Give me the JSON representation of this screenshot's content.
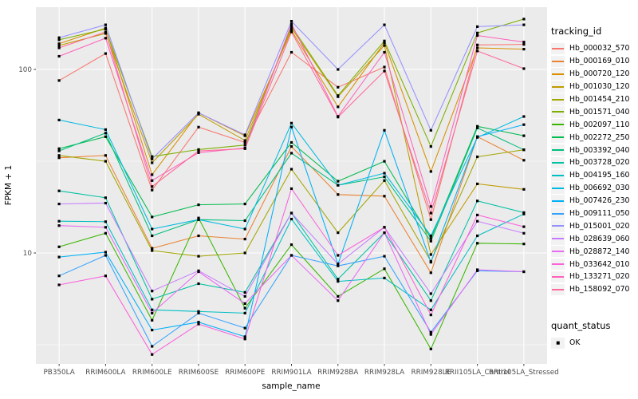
{
  "chart_data": {
    "type": "line",
    "title": "",
    "xlabel": "sample_name",
    "ylabel": "FPKM + 1",
    "x_categories": [
      "PB350LA",
      "RRIM600LA",
      "RRIM600LE",
      "RRIM600SE",
      "RRIM600PE",
      "RRIM901LA",
      "RRIM928BA",
      "RRIM928LA",
      "RRIM928LE",
      "RRII105LA_Control",
      "RRII105LA_Stressed"
    ],
    "y_scale": "log10",
    "y_ticks": [
      10,
      100
    ],
    "y_minor_ticks": [
      3.162,
      31.623
    ],
    "ylim": [
      2.5,
      218
    ],
    "grid": "on",
    "panel_bg": "#EBEBEB",
    "grid_color": "#FFFFFF",
    "tick_color": "#333333",
    "tick_label_color": "#4D4D4D",
    "point_color": "#000000",
    "point_shape": "square",
    "legend_position": "right",
    "legend_title": "tracking_id",
    "quant_legend": {
      "title": "quant_status",
      "items": [
        "OK"
      ]
    },
    "series": [
      {
        "name": "Hb_000032_570",
        "color": "#F8766D",
        "values": [
          87,
          122,
          22,
          48.5,
          40,
          124,
          80,
          103,
          15.2,
          136,
          137
        ]
      },
      {
        "name": "Hb_000169_010",
        "color": "#EA8331",
        "values": [
          33,
          34,
          10.6,
          12.4,
          11.9,
          38,
          20.8,
          20.4,
          7.8,
          43,
          32
        ]
      },
      {
        "name": "Hb_000720_120",
        "color": "#D89000",
        "values": [
          138,
          168,
          26.7,
          58,
          43.5,
          163,
          62.5,
          140,
          27.8,
          131,
          129
        ]
      },
      {
        "name": "Hb_001030_120",
        "color": "#C09B00",
        "values": [
          135,
          157,
          31,
          57,
          41,
          168,
          71,
          135,
          9.8,
          23.8,
          22.2
        ]
      },
      {
        "name": "Hb_001454_210",
        "color": "#A3A500",
        "values": [
          34,
          31.6,
          10.3,
          9.6,
          10,
          28.6,
          12.9,
          24.8,
          9,
          33.4,
          36.5
        ]
      },
      {
        "name": "Hb_001571_040",
        "color": "#7CAE00",
        "values": [
          145,
          166,
          33.5,
          36.6,
          38.7,
          172,
          72,
          143,
          38,
          158,
          188
        ]
      },
      {
        "name": "Hb_002097_110",
        "color": "#39B600",
        "values": [
          10.8,
          12.8,
          4.3,
          15.5,
          5,
          11.1,
          5.8,
          8.2,
          3,
          11.3,
          11.2
        ]
      },
      {
        "name": "Hb_002272_250",
        "color": "#00BB4E",
        "values": [
          37,
          43,
          15.7,
          18.3,
          18.5,
          40,
          24.6,
          31.6,
          12,
          49,
          43.5
        ]
      },
      {
        "name": "Hb_003392_040",
        "color": "#00BF7D",
        "values": [
          36,
          45,
          12.4,
          15.2,
          15,
          35,
          23.4,
          26,
          11.6,
          48,
          36.5
        ]
      },
      {
        "name": "Hb_003728_020",
        "color": "#00C1A3",
        "values": [
          21.8,
          20,
          5.6,
          6.8,
          6.1,
          16.5,
          7.2,
          12.9,
          5.5,
          19.2,
          16.6
        ]
      },
      {
        "name": "Hb_004195_160",
        "color": "#00BFC4",
        "values": [
          14.9,
          14.8,
          4.9,
          4.8,
          4.7,
          15.3,
          7,
          7.3,
          4.9,
          12.4,
          16.3
        ]
      },
      {
        "name": "Hb_006692_030",
        "color": "#00BAE0",
        "values": [
          53,
          47,
          13.5,
          15.2,
          13.5,
          51,
          23.4,
          27.2,
          12.4,
          42.6,
          55.4
        ]
      },
      {
        "name": "Hb_007426_230",
        "color": "#00B0F6",
        "values": [
          9.5,
          10.1,
          3.8,
          4.2,
          3.5,
          48.6,
          8.7,
          46.6,
          8.9,
          43,
          50
        ]
      },
      {
        "name": "Hb_009111_050",
        "color": "#35A2FF",
        "values": [
          7.5,
          9.7,
          3.1,
          4.7,
          3.9,
          9.7,
          8.5,
          9.6,
          3.7,
          8,
          7.9
        ]
      },
      {
        "name": "Hb_015001_020",
        "color": "#9590FF",
        "values": [
          149,
          175,
          32.5,
          58,
          44,
          183,
          100,
          175,
          46.6,
          171,
          175
        ]
      },
      {
        "name": "Hb_028639_060",
        "color": "#C77CFF",
        "values": [
          18.5,
          18.7,
          6.2,
          8,
          5.8,
          16.5,
          8.7,
          13.8,
          6,
          14.9,
          12.8
        ]
      },
      {
        "name": "Hb_028872_140",
        "color": "#E76BF3",
        "values": [
          14.1,
          13.8,
          4.7,
          7.9,
          5.3,
          9.7,
          5.5,
          12.9,
          3.6,
          8.1,
          7.9
        ]
      },
      {
        "name": "Hb_033642_010",
        "color": "#FA62DB",
        "values": [
          6.7,
          7.5,
          2.8,
          4.1,
          3.4,
          22.4,
          9.7,
          13.8,
          4.6,
          16.1,
          13.9
        ]
      },
      {
        "name": "Hb_133271_020",
        "color": "#FF62BC",
        "values": [
          118,
          148,
          24.8,
          35.2,
          37.3,
          177,
          55.5,
          124,
          17.9,
          153,
          141
        ]
      },
      {
        "name": "Hb_158092_070",
        "color": "#FF6A98",
        "values": [
          131,
          160,
          23,
          36,
          37,
          160,
          55,
          98,
          16.5,
          126,
          101
        ]
      }
    ]
  }
}
